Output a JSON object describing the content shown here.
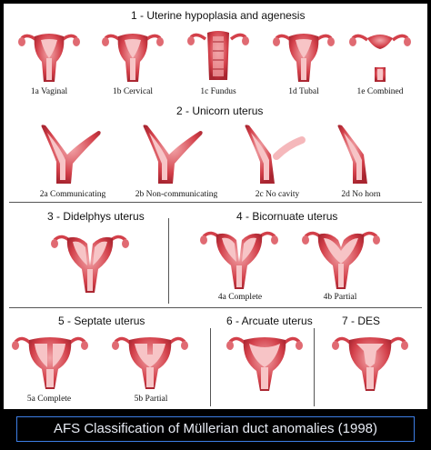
{
  "sections": {
    "s1": {
      "title": "1 - Uterine hypoplasia and agenesis",
      "items": [
        "1a Vaginal",
        "1b Cervical",
        "1c Fundus",
        "1d Tubal",
        "1e Combined"
      ]
    },
    "s2": {
      "title": "2 - Unicorn uterus",
      "items": [
        "2a Communicating",
        "2b Non-communicating",
        "2c No cavity",
        "2d No horn"
      ]
    },
    "s3": {
      "title": "3    - Didelphys uterus"
    },
    "s4": {
      "title": "4 - Bicornuate uterus",
      "items": [
        "4a Complete",
        "4b Partial"
      ]
    },
    "s5": {
      "title": "5    - Septate uterus",
      "items": [
        "5a Complete",
        "5b Partial"
      ]
    },
    "s6": {
      "title": "6 - Arcuate uterus"
    },
    "s7": {
      "title": "7    - DES"
    }
  },
  "footer": {
    "text": "AFS Classification of Müllerian duct anomalies (1998)"
  },
  "colors": {
    "tissue": "#d3404a",
    "tissue_dark": "#a82530",
    "tissue_light": "#f2a6aa",
    "cavity": "#f7c4c6",
    "frame": "#3d7ee6"
  },
  "icons": {
    "figure": "uterus-illustration-icon"
  }
}
